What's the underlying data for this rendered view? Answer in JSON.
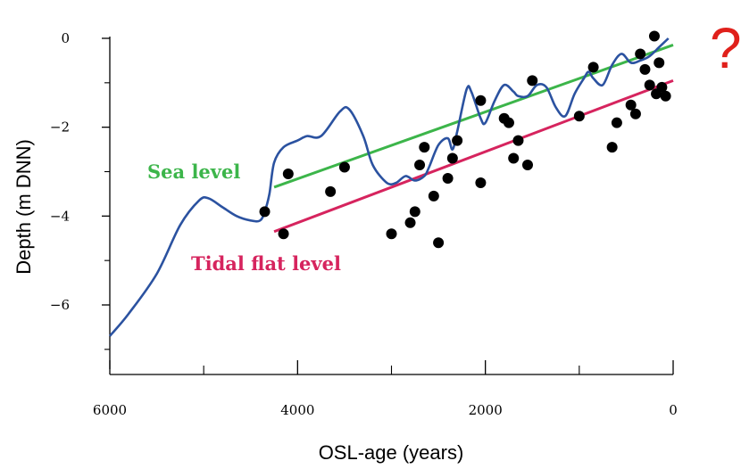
{
  "chart_data": {
    "type": "scatter",
    "title": "",
    "xlabel": "OSL-age (years)",
    "ylabel": "Depth (m DNN)",
    "x_reversed": true,
    "xlim": [
      6000,
      0
    ],
    "ylim": [
      -7.5,
      0.2
    ],
    "xticks": [
      6000,
      4000,
      2000,
      0
    ],
    "xticks_minor": [
      5000,
      3000,
      1000
    ],
    "yticks": [
      0,
      -2,
      -4,
      -6
    ],
    "yticks_minor": [
      -1,
      -3,
      -5,
      -7
    ],
    "tick_labels_x": [
      "6000",
      "4000",
      "2000",
      "0"
    ],
    "tick_labels_y": [
      "0",
      "−2",
      "−4",
      "−6"
    ],
    "annotation": "?",
    "annotation_color": "#e0201b",
    "series": [
      {
        "name": "Sea level",
        "kind": "line",
        "color": "#3cb54a",
        "x": [
          4250,
          0
        ],
        "y": [
          -3.35,
          -0.15
        ]
      },
      {
        "name": "Tidal flat level",
        "kind": "line",
        "color": "#d6245e",
        "x": [
          4250,
          0
        ],
        "y": [
          -4.35,
          -0.95
        ]
      },
      {
        "name": "",
        "kind": "curve",
        "color": "#2b52a0",
        "x": [
          6000,
          5800,
          5500,
          5250,
          5050,
          4950,
          4800,
          4650,
          4500,
          4400,
          4350,
          4300,
          4250,
          4150,
          4000,
          3900,
          3750,
          3550,
          3450,
          3300,
          3200,
          3050,
          2950,
          2850,
          2750,
          2650,
          2600,
          2500,
          2400,
          2350,
          2300,
          2200,
          2150,
          2050,
          2000,
          1900,
          1800,
          1700,
          1650,
          1550,
          1450,
          1350,
          1250,
          1150,
          1050,
          950,
          900,
          850,
          750,
          650,
          550,
          450,
          350,
          250,
          150,
          50
        ],
        "y": [
          -6.7,
          -6.2,
          -5.3,
          -4.2,
          -3.65,
          -3.6,
          -3.8,
          -4.0,
          -4.1,
          -4.1,
          -3.9,
          -3.5,
          -2.8,
          -2.45,
          -2.3,
          -2.2,
          -2.2,
          -1.65,
          -1.6,
          -2.2,
          -2.85,
          -3.25,
          -3.25,
          -3.1,
          -3.2,
          -3.1,
          -2.9,
          -2.4,
          -2.25,
          -2.5,
          -2.1,
          -1.15,
          -1.2,
          -1.8,
          -1.9,
          -1.4,
          -1.05,
          -1.2,
          -1.3,
          -1.3,
          -1.05,
          -1.1,
          -1.55,
          -1.75,
          -1.25,
          -0.9,
          -0.75,
          -0.9,
          -1.05,
          -0.6,
          -0.35,
          -0.55,
          -0.5,
          -0.4,
          -0.2,
          0.0
        ]
      },
      {
        "name": "",
        "kind": "points",
        "color": "#000000",
        "x": [
          4350,
          4150,
          4100,
          3650,
          3500,
          3000,
          2800,
          2750,
          2700,
          2650,
          2550,
          2500,
          2400,
          2350,
          2300,
          2050,
          2050,
          1800,
          1750,
          1700,
          1650,
          1550,
          1500,
          1000,
          850,
          650,
          600,
          450,
          400,
          350,
          300,
          250,
          200,
          180,
          150,
          120,
          80
        ],
        "y": [
          -3.9,
          -4.4,
          -3.05,
          -3.45,
          -2.9,
          -4.4,
          -4.15,
          -3.9,
          -2.85,
          -2.45,
          -3.55,
          -4.6,
          -3.15,
          -2.7,
          -2.3,
          -3.25,
          -1.4,
          -1.8,
          -1.9,
          -2.7,
          -2.3,
          -2.85,
          -0.95,
          -1.75,
          -0.65,
          -2.45,
          -1.9,
          -1.5,
          -1.7,
          -0.35,
          -0.7,
          -1.05,
          0.05,
          -1.25,
          -0.55,
          -1.1,
          -1.3
        ]
      }
    ]
  }
}
